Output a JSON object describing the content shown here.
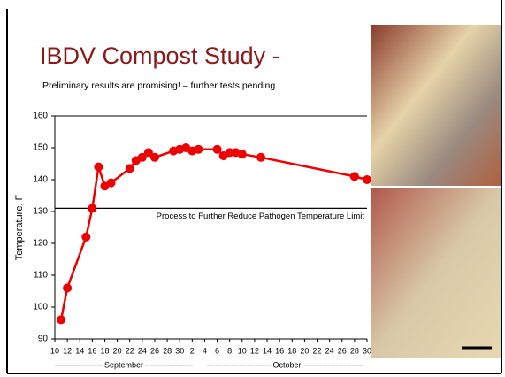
{
  "chart_data": {
    "type": "line",
    "title": "IBDV Compost Study -",
    "subtitle": "Preliminary results are promising! – further tests pending",
    "y_label": "Temperature, F",
    "x_group_labels": [
      "------------------ September ------------------",
      "------------------------ October -----------------------"
    ],
    "annotation": "Process to Further Reduce Pathogen Temperature Limit",
    "reference_value": 131,
    "xlim": [
      10,
      60
    ],
    "ylim": [
      90,
      160
    ],
    "yticks": [
      90,
      100,
      110,
      120,
      130,
      140,
      150,
      160
    ],
    "xticks": [
      {
        "value": 10,
        "label": "10"
      },
      {
        "value": 12,
        "label": "12"
      },
      {
        "value": 14,
        "label": "14"
      },
      {
        "value": 16,
        "label": "16"
      },
      {
        "value": 18,
        "label": "18"
      },
      {
        "value": 20,
        "label": "20"
      },
      {
        "value": 22,
        "label": "22"
      },
      {
        "value": 24,
        "label": "24"
      },
      {
        "value": 26,
        "label": "26"
      },
      {
        "value": 28,
        "label": "28"
      },
      {
        "value": 30,
        "label": "30"
      },
      {
        "value": 32,
        "label": "2"
      },
      {
        "value": 34,
        "label": "4"
      },
      {
        "value": 36,
        "label": "6"
      },
      {
        "value": 38,
        "label": "8"
      },
      {
        "value": 40,
        "label": "10"
      },
      {
        "value": 42,
        "label": "12"
      },
      {
        "value": 44,
        "label": "14"
      },
      {
        "value": 46,
        "label": "16"
      },
      {
        "value": 48,
        "label": "18"
      },
      {
        "value": 50,
        "label": "20"
      },
      {
        "value": 52,
        "label": "22"
      },
      {
        "value": 54,
        "label": "24"
      },
      {
        "value": 56,
        "label": "26"
      },
      {
        "value": 58,
        "label": "28"
      },
      {
        "value": 60,
        "label": "30"
      }
    ],
    "series": [
      {
        "color": "#ee0000",
        "x": [
          11,
          12,
          15,
          16,
          17,
          18,
          19,
          22,
          23,
          24,
          25,
          26,
          29,
          30,
          31,
          32,
          33,
          36,
          37,
          38,
          39,
          40,
          43,
          58,
          60
        ],
        "values": [
          96,
          106,
          122,
          131,
          144,
          138,
          139,
          143.5,
          146,
          147,
          148.5,
          147,
          149,
          149.5,
          150,
          149,
          149.5,
          149.5,
          147.5,
          148.5,
          148.5,
          148,
          147,
          141,
          140
        ]
      }
    ]
  }
}
